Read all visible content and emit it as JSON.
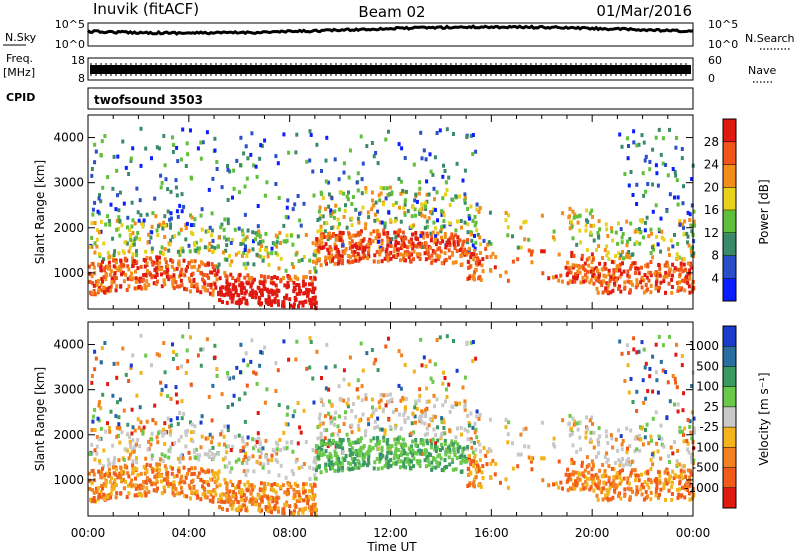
{
  "header": {
    "station": "Inuvik (fitACF)",
    "beam": "Beam 02",
    "date": "01/Mar/2016"
  },
  "top_panels": {
    "nsky_label": "N.Sky",
    "nsky_ticks": [
      "10^5",
      "10^0"
    ],
    "nsearch_label": "N.Search",
    "nsearch_ticks": [
      "10^5",
      "10^0"
    ],
    "freq_label_1": "Freq.",
    "freq_label_2": "[MHz]",
    "freq_ticks": [
      "18",
      "8"
    ],
    "nave_label": "Nave",
    "nave_ticks": [
      "60",
      "0"
    ],
    "cpid_label": "CPID",
    "cpid_value": "twofsound 3503"
  },
  "chart_data": [
    {
      "type": "heatmap",
      "name": "power",
      "ylabel": "Slant Range [km]",
      "xlabel": "",
      "yticks": [
        1000,
        2000,
        3000,
        4000
      ],
      "ylim": [
        200,
        4500
      ],
      "colorbar": {
        "label": "Power [dB]",
        "ticks": [
          "4",
          "8",
          "12",
          "16",
          "20",
          "24",
          "28"
        ],
        "colors": [
          "#0a1eff",
          "#2a4ec8",
          "#3a8a6a",
          "#5fbf3a",
          "#e6d21a",
          "#f28c1a",
          "#f2551a",
          "#e01a10"
        ]
      }
    },
    {
      "type": "heatmap",
      "name": "velocity",
      "ylabel": "Slant Range [km]",
      "xlabel": "Time UT",
      "yticks": [
        1000,
        2000,
        3000,
        4000
      ],
      "ylim": [
        200,
        4500
      ],
      "xticks": [
        "00:00",
        "04:00",
        "08:00",
        "12:00",
        "16:00",
        "20:00",
        "00:00"
      ],
      "colorbar": {
        "label": "Velocity [m s⁻¹]",
        "ticks": [
          "1000",
          "500",
          "100",
          "25",
          "-25",
          "-100",
          "-500",
          "-1000"
        ],
        "colors": [
          "#1a3ccc",
          "#2a6ea0",
          "#3a9a60",
          "#6ac84a",
          "#c8c8c8",
          "#f2b41a",
          "#f28220",
          "#f25a1a",
          "#e01a10"
        ]
      }
    }
  ]
}
